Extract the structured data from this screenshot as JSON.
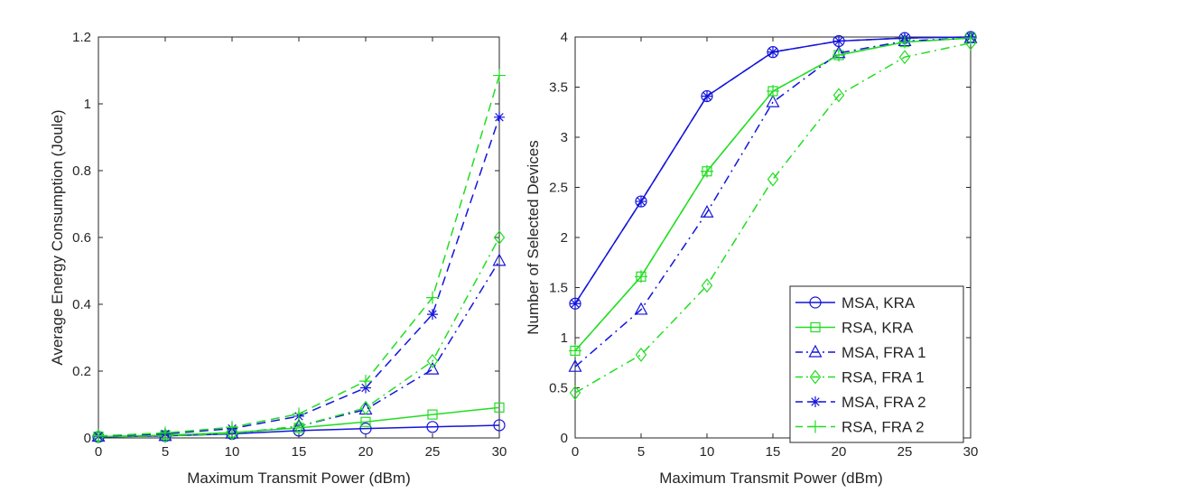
{
  "chart_data": [
    {
      "type": "line",
      "xlabel": "Maximum Transmit Power (dBm)",
      "ylabel": "Average Energy Consumption (Joule)",
      "xlim": [
        0,
        30
      ],
      "ylim": [
        0,
        1.2
      ],
      "xticks": [
        0,
        5,
        10,
        15,
        20,
        25,
        30
      ],
      "yticks": [
        0,
        0.2,
        0.4,
        0.6,
        0.8,
        1,
        1.2
      ],
      "x": [
        0,
        5,
        10,
        15,
        20,
        25,
        30
      ],
      "series": [
        {
          "name": "MSA, KRA",
          "values": [
            0.003,
            0.006,
            0.012,
            0.022,
            0.028,
            0.033,
            0.038
          ],
          "color": "#1414dc",
          "dash": "solid",
          "marker": "circle"
        },
        {
          "name": "RSA, KRA",
          "values": [
            0.004,
            0.008,
            0.016,
            0.03,
            0.048,
            0.07,
            0.091
          ],
          "color": "#22dd22",
          "dash": "solid",
          "marker": "square"
        },
        {
          "name": "MSA, FRA 1",
          "values": [
            0.004,
            0.006,
            0.013,
            0.035,
            0.085,
            0.205,
            0.53
          ],
          "color": "#1414dc",
          "dash": "dashdot",
          "marker": "triangle"
        },
        {
          "name": "RSA, FRA 1",
          "values": [
            0.004,
            0.006,
            0.014,
            0.035,
            0.09,
            0.23,
            0.6
          ],
          "color": "#22dd22",
          "dash": "dashdot",
          "marker": "diamond"
        },
        {
          "name": "MSA, FRA 2",
          "values": [
            0.005,
            0.012,
            0.028,
            0.065,
            0.15,
            0.37,
            0.96
          ],
          "color": "#1414dc",
          "dash": "dashed",
          "marker": "star"
        },
        {
          "name": "RSA, FRA 2",
          "values": [
            0.006,
            0.015,
            0.032,
            0.072,
            0.17,
            0.42,
            1.085
          ],
          "color": "#22dd22",
          "dash": "dashed",
          "marker": "plus"
        }
      ]
    },
    {
      "type": "line",
      "xlabel": "Maximum Transmit Power (dBm)",
      "ylabel": "Number of Selected Devices",
      "xlim": [
        0,
        30
      ],
      "ylim": [
        0,
        4
      ],
      "xticks": [
        0,
        5,
        10,
        15,
        20,
        25,
        30
      ],
      "yticks": [
        0,
        0.5,
        1,
        1.5,
        2,
        2.5,
        3,
        3.5,
        4
      ],
      "x": [
        0,
        5,
        10,
        15,
        20,
        25,
        30
      ],
      "legend_location": "bottom-right",
      "series": [
        {
          "name": "MSA, KRA",
          "values": [
            1.34,
            2.36,
            3.41,
            3.85,
            3.96,
            3.99,
            4.0
          ],
          "color": "#1414dc",
          "dash": "solid",
          "marker": "circle"
        },
        {
          "name": "RSA, KRA",
          "values": [
            0.87,
            1.61,
            2.66,
            3.46,
            3.82,
            3.95,
            3.99
          ],
          "color": "#22dd22",
          "dash": "solid",
          "marker": "square"
        },
        {
          "name": "MSA, FRA 1",
          "values": [
            0.71,
            1.28,
            2.25,
            3.35,
            3.84,
            3.96,
            3.99
          ],
          "color": "#1414dc",
          "dash": "dashdot",
          "marker": "triangle"
        },
        {
          "name": "RSA, FRA 1",
          "values": [
            0.45,
            0.83,
            1.52,
            2.58,
            3.42,
            3.8,
            3.94
          ],
          "color": "#22dd22",
          "dash": "dashdot",
          "marker": "diamond"
        },
        {
          "name": "MSA, FRA 2",
          "values": [
            1.34,
            2.36,
            3.41,
            3.85,
            3.96,
            3.99,
            4.0
          ],
          "color": "#1414dc",
          "dash": "dashed",
          "marker": "star"
        },
        {
          "name": "RSA, FRA 2",
          "values": [
            0.87,
            1.61,
            2.66,
            3.46,
            3.82,
            3.95,
            3.99
          ],
          "color": "#22dd22",
          "dash": "dashed",
          "marker": "plus"
        }
      ]
    }
  ]
}
